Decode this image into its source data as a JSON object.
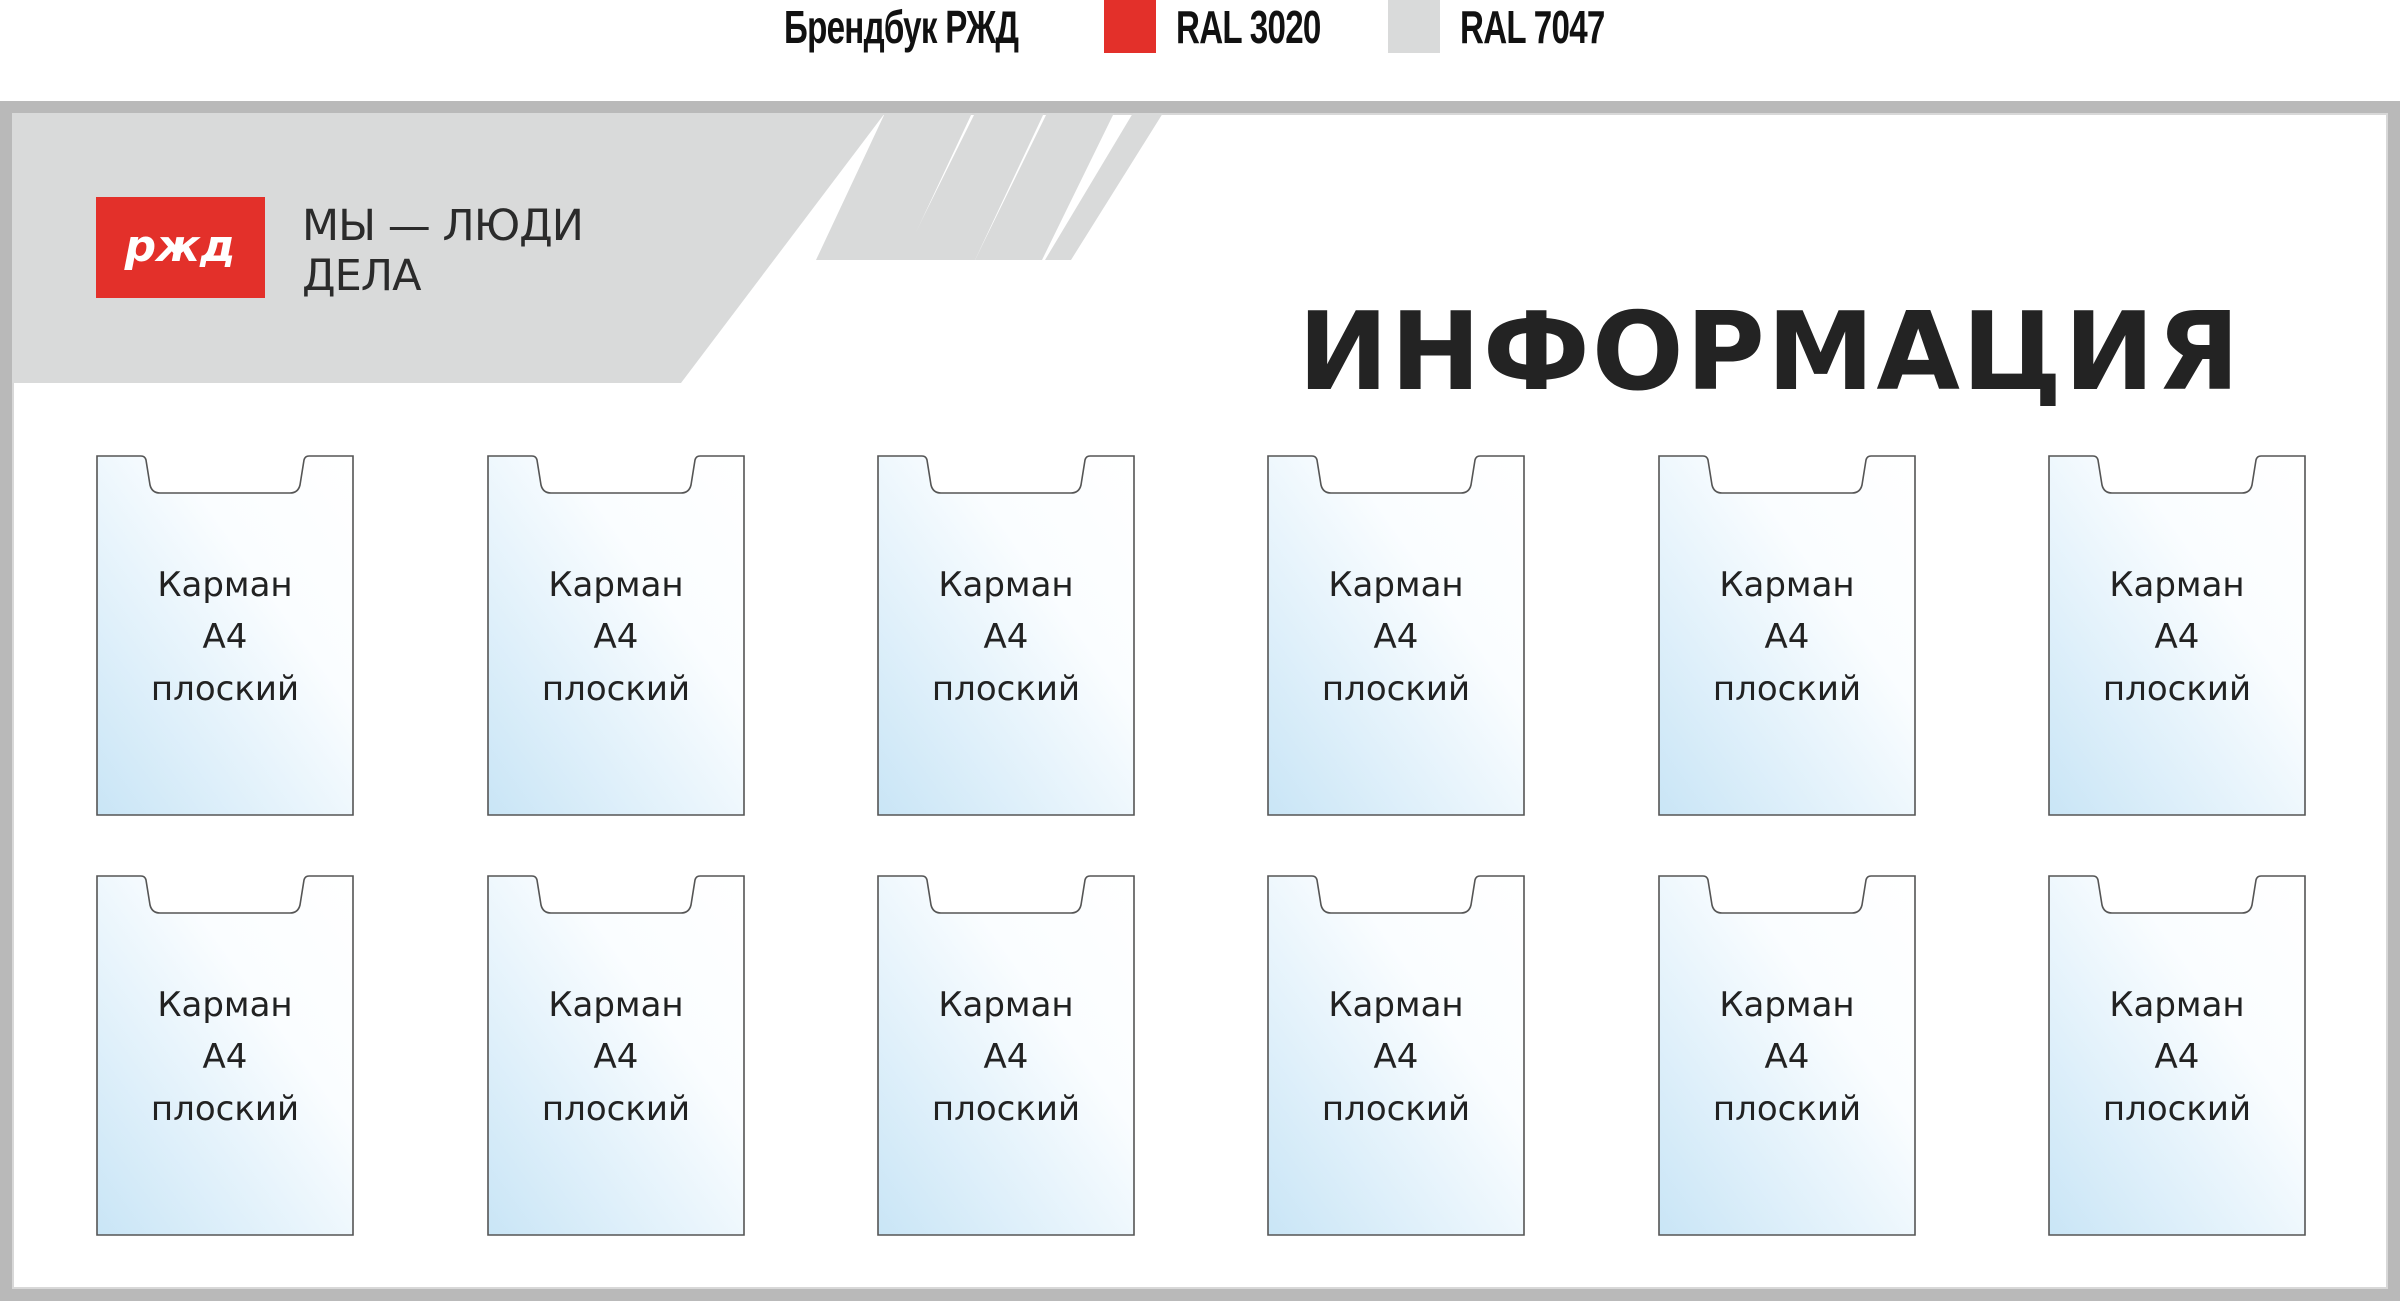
{
  "legend": {
    "brandbook_label": "Брендбук РЖД",
    "color1_label": "RAL 3020",
    "color1_hex": "#e3302a",
    "color2_label": "RAL 7047",
    "color2_hex": "#d9dada"
  },
  "header": {
    "logo_text": "РЖД",
    "slogan_line1": "МЫ — ЛЮДИ",
    "slogan_line2": "ДЕЛА",
    "title": "ИНФОРМАЦИЯ"
  },
  "pockets": [
    {
      "line1": "Карман",
      "line2": "А4",
      "line3": "плоский"
    },
    {
      "line1": "Карман",
      "line2": "А4",
      "line3": "плоский"
    },
    {
      "line1": "Карман",
      "line2": "А4",
      "line3": "плоский"
    },
    {
      "line1": "Карман",
      "line2": "А4",
      "line3": "плоский"
    },
    {
      "line1": "Карман",
      "line2": "А4",
      "line3": "плоский"
    },
    {
      "line1": "Карман",
      "line2": "А4",
      "line3": "плоский"
    },
    {
      "line1": "Карман",
      "line2": "А4",
      "line3": "плоский"
    },
    {
      "line1": "Карман",
      "line2": "А4",
      "line3": "плоский"
    },
    {
      "line1": "Карман",
      "line2": "А4",
      "line3": "плоский"
    },
    {
      "line1": "Карман",
      "line2": "А4",
      "line3": "плоский"
    },
    {
      "line1": "Карман",
      "line2": "А4",
      "line3": "плоский"
    },
    {
      "line1": "Карман",
      "line2": "А4",
      "line3": "плоский"
    }
  ]
}
